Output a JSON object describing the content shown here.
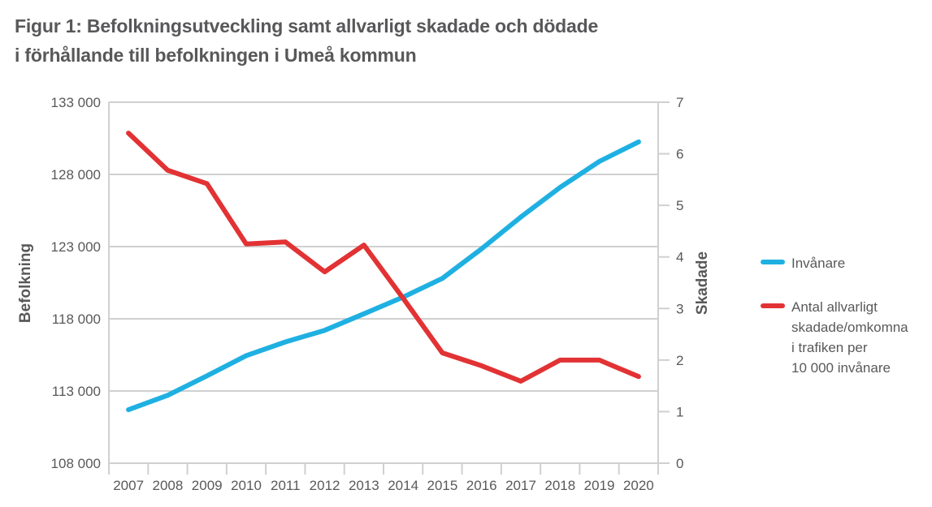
{
  "title": {
    "line1": "Figur 1: Befolkningsutveckling samt allvarligt skadade och dödade",
    "line2": "i förhållande till befolkningen i Umeå kommun"
  },
  "legend": {
    "items": [
      {
        "label": "Invånare",
        "color": "#1fb0e2"
      },
      {
        "label": "Antal allvarligt\nskadade/omkomna\ni trafiken per\n10 000 invånare",
        "color": "#e23234"
      }
    ]
  },
  "chart_data": {
    "type": "line",
    "title": "Figur 1: Befolkningsutveckling samt allvarligt skadade och dödade i förhållande till befolkningen i Umeå kommun",
    "xlabel": "",
    "ylabel": "Befolkning",
    "y2label": "Skadade",
    "categories": [
      "2007",
      "2008",
      "2009",
      "2010",
      "2011",
      "2012",
      "2013",
      "2014",
      "2015",
      "2016",
      "2017",
      "2018",
      "2019",
      "2020"
    ],
    "y_axis": {
      "min": 108000,
      "max": 133000,
      "step": 5000,
      "ticks": [
        "108 000",
        "113 000",
        "118 000",
        "123 000",
        "128 000",
        "133 000"
      ]
    },
    "y2_axis": {
      "min": 0,
      "max": 7,
      "step": 1,
      "ticks": [
        "0",
        "1",
        "2",
        "3",
        "4",
        "5",
        "6",
        "7"
      ]
    },
    "grid": true,
    "legend_position": "right",
    "series": [
      {
        "name": "Invånare",
        "axis": "left",
        "color": "#1fb0e2",
        "values": [
          111700,
          112700,
          114050,
          115450,
          116400,
          117200,
          118350,
          119500,
          120800,
          122850,
          125050,
          127100,
          128900,
          130250
        ]
      },
      {
        "name": "Antal allvarligt skadade/omkomna i trafiken per 10 000 invånare",
        "axis": "right",
        "color": "#e23234",
        "values": [
          6.4,
          5.68,
          5.42,
          4.25,
          4.29,
          3.71,
          4.23,
          3.2,
          2.14,
          1.89,
          1.59,
          2.0,
          2.0,
          1.68
        ]
      }
    ]
  }
}
